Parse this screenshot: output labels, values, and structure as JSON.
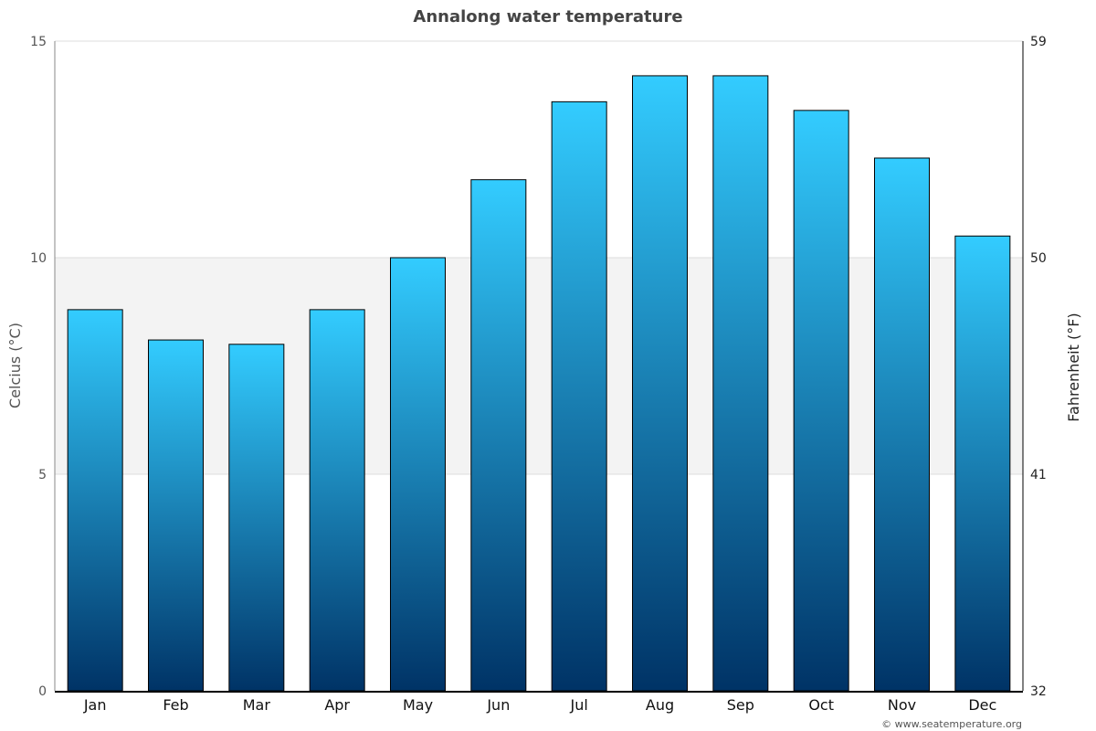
{
  "chart_data": {
    "type": "bar",
    "title": "Annalong water temperature",
    "categories": [
      "Jan",
      "Feb",
      "Mar",
      "Apr",
      "May",
      "Jun",
      "Jul",
      "Aug",
      "Sep",
      "Oct",
      "Nov",
      "Dec"
    ],
    "values": [
      8.8,
      8.1,
      8.0,
      8.8,
      10.0,
      11.8,
      13.6,
      14.2,
      14.2,
      13.4,
      12.3,
      10.5
    ],
    "ylabel": "Celcius (°C)",
    "y2label": "Fahrenheit (°F)",
    "ylim": [
      0,
      15
    ],
    "yticks": [
      "0",
      "5",
      "10",
      "15"
    ],
    "y2ticks": [
      "32",
      "41",
      "50",
      "59"
    ],
    "highlight_band": [
      5,
      10
    ],
    "grid": true,
    "colors": {
      "bar_top": "#33ccff",
      "bar_bottom": "#003366",
      "band": "#f3f3f3"
    }
  },
  "credit": "© www.seatemperature.org"
}
